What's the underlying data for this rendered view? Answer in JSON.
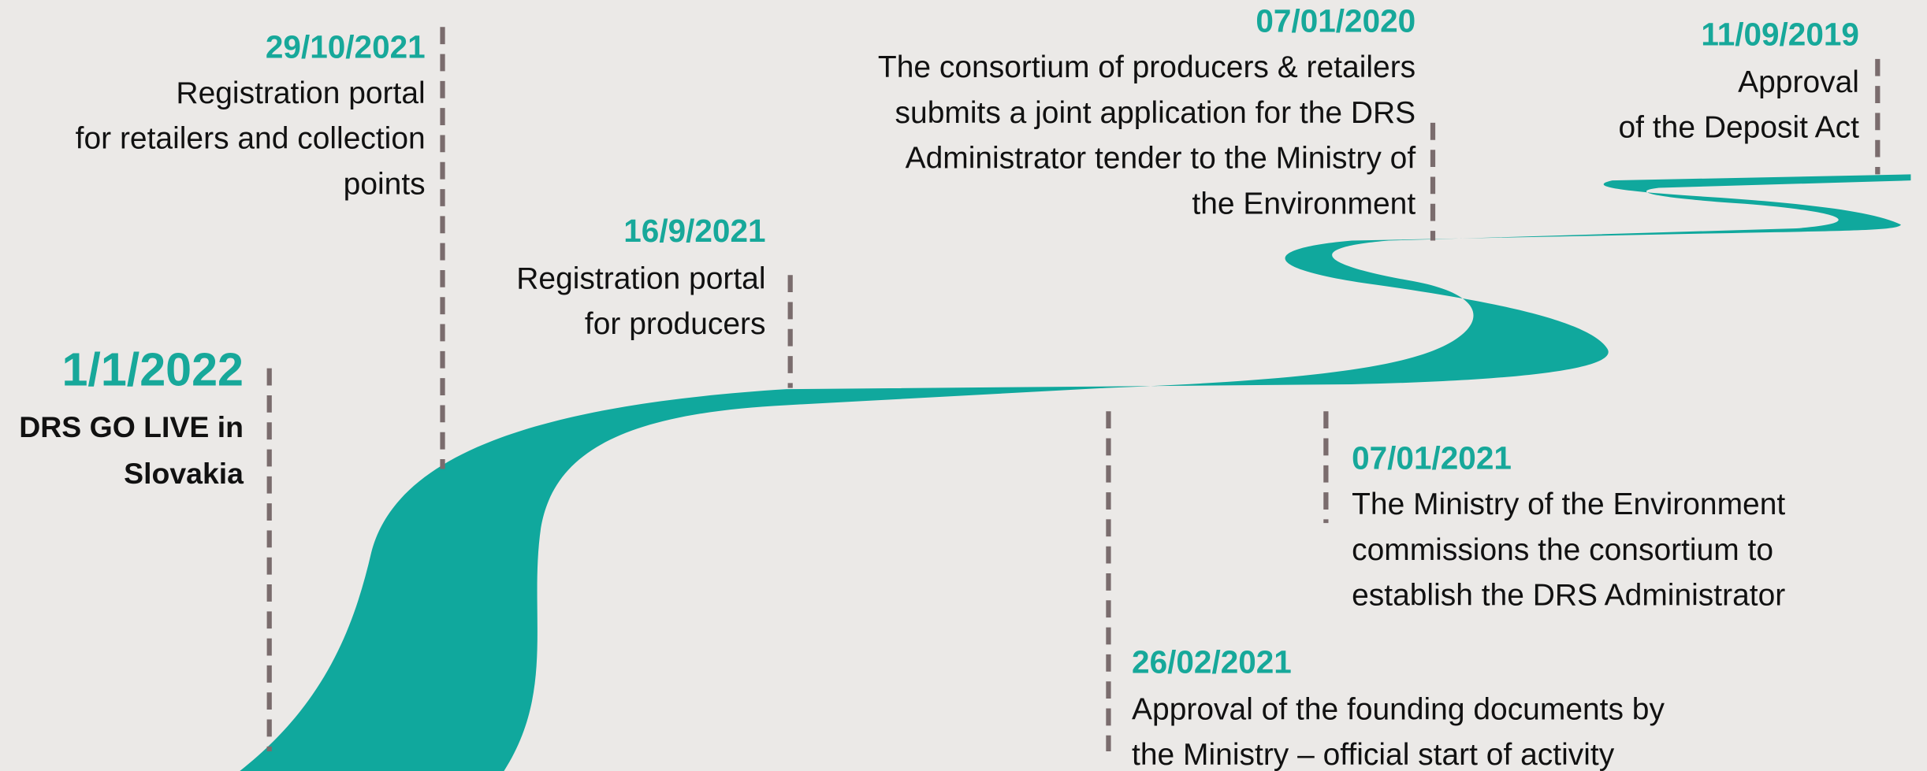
{
  "events": [
    {
      "date": "1/1/2022",
      "lines": [
        "DRS GO LIVE in",
        "Slovakia"
      ]
    },
    {
      "date": "29/10/2021",
      "lines": [
        "Registration portal",
        "for retailers and collection",
        "points"
      ]
    },
    {
      "date": "16/9/2021",
      "lines": [
        "Registration portal",
        "for producers"
      ]
    },
    {
      "date": "07/01/2020",
      "lines": [
        "The consortium of producers & retailers",
        "submits a joint application for the DRS",
        "Administrator tender to the Ministry of",
        "the Environment"
      ]
    },
    {
      "date": "11/09/2019",
      "lines": [
        "Approval",
        "of the Deposit Act"
      ]
    },
    {
      "date": "07/01/2021",
      "lines": [
        "The Ministry of the Environment",
        "commissions the consortium to",
        "establish the DRS Administrator"
      ]
    },
    {
      "date": "26/02/2021",
      "lines": [
        "Approval of the founding documents by",
        "the Ministry – official start of activity"
      ]
    }
  ]
}
